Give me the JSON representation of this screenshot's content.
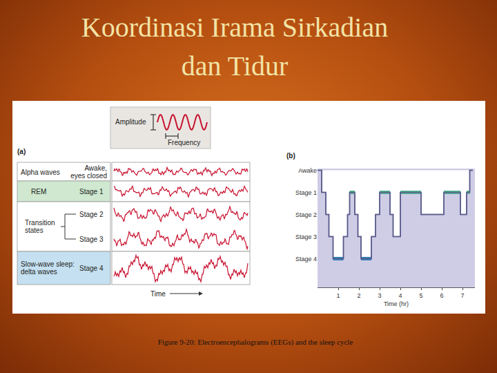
{
  "slide": {
    "title": [
      "Koordinasi Irama Sirkadian",
      "dan Tidur"
    ],
    "caption": "Figure 9-20: Electroencephalograms (EEGs) and the sleep cycle"
  },
  "panel_a": {
    "label": "(a)",
    "key": {
      "amplitude": "Amplitude",
      "frequency": "Frequency"
    },
    "time_label": "Time",
    "rows": [
      {
        "group": [
          "Alpha waves"
        ],
        "stages": [
          [
            "Awake,",
            "eyes closed"
          ]
        ],
        "color": "#ffffff"
      },
      {
        "group": [
          "REM"
        ],
        "stages": [
          [
            "Stage 1"
          ]
        ],
        "color": "#cfe8cf"
      },
      {
        "group": [
          "Transition",
          "states"
        ],
        "stages": [
          [
            "Stage 2"
          ],
          [
            "Stage 3"
          ]
        ],
        "color": "#ffffff"
      },
      {
        "group": [
          "Slow-wave sleep:",
          "delta waves"
        ],
        "stages": [
          [
            "Stage 4"
          ]
        ],
        "color": "#c5e0f0"
      }
    ]
  },
  "chart_data": {
    "type": "line",
    "panel_label": "(b)",
    "x_label": "Time (hr)",
    "y_categories": [
      "Awake",
      "Stage 1",
      "Stage 2",
      "Stage 3",
      "Stage 4"
    ],
    "x": [
      0,
      0.2,
      0.4,
      0.55,
      0.75,
      1.25,
      1.45,
      1.55,
      1.8,
      1.95,
      2.1,
      2.6,
      2.8,
      3.0,
      3.5,
      3.65,
      4.0,
      5.0,
      6.1,
      6.9,
      7.2,
      7.35,
      7.5
    ],
    "values": [
      "Awake",
      "Stage 1",
      "Stage 2",
      "Stage 3",
      "Stage 4",
      "Stage 3",
      "Stage 2",
      "Stage 1",
      "Stage 2",
      "Stage 3",
      "Stage 4",
      "Stage 3",
      "Stage 2",
      "Stage 1",
      "Stage 2",
      "Stage 3",
      "Stage 1",
      "Stage 2",
      "Stage 1",
      "Stage 2",
      "Stage 1",
      "Awake",
      "Awake"
    ],
    "color": "#5b5b8c",
    "colors": [
      "#5b5b8c",
      "#5b5b8c",
      "#5b5b8c",
      "#5b5b8c",
      "#2f7fb5",
      "#5b5b8c",
      "#5b5b8c",
      "#4fae8f",
      "#5b5b8c",
      "#5b5b8c",
      "#2f7fb5",
      "#5b5b8c",
      "#5b5b8c",
      "#4fae8f",
      "#5b5b8c",
      "#5b5b8c",
      "#4fae8f",
      "#5b5b8c",
      "#4fae8f",
      "#5b5b8c",
      "#4fae8f",
      "#5b5b8c",
      "#5b5b8c"
    ],
    "line_style": "step",
    "xlim": [
      0,
      7.6
    ],
    "xticks": [
      1,
      2,
      3,
      4,
      5,
      6,
      7
    ]
  }
}
